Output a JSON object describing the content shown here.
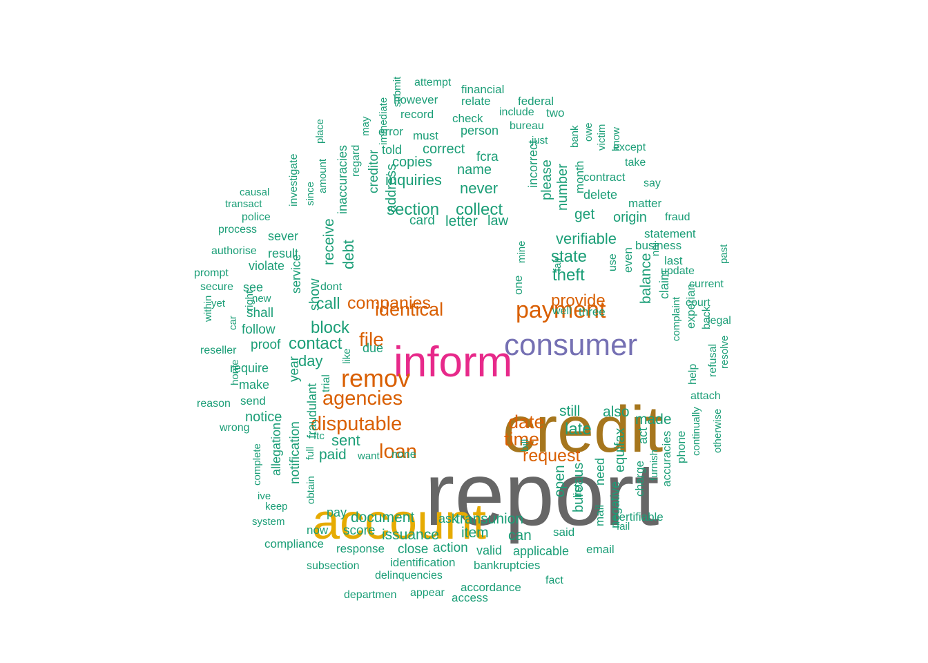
{
  "colors": {
    "c0": "#1b9e77",
    "c1": "#d95f02",
    "c2": "#7570b3",
    "c3": "#e7298a",
    "c4": "#66a61e",
    "c5": "#e6ab02",
    "c6": "#a6761d",
    "c7": "#666666"
  },
  "words": [
    {
      "t": "report",
      "c": "c7"
    },
    {
      "t": "credit",
      "c": "c6"
    },
    {
      "t": "account",
      "c": "c5"
    },
    {
      "t": "inform",
      "c": "c3"
    },
    {
      "t": "consumer",
      "c": "c2"
    },
    {
      "t": "payment",
      "c": "c1"
    },
    {
      "t": "remov",
      "c": "c1"
    },
    {
      "t": "agencies",
      "c": "c1"
    },
    {
      "t": "disputable",
      "c": "c1"
    },
    {
      "t": "file",
      "c": "c1"
    },
    {
      "t": "identical",
      "c": "c1"
    },
    {
      "t": "companies",
      "c": "c1"
    },
    {
      "t": "loan",
      "c": "c1"
    },
    {
      "t": "date",
      "c": "c1"
    },
    {
      "t": "time",
      "c": "c1"
    },
    {
      "t": "request",
      "c": "c1"
    },
    {
      "t": "provide",
      "c": "c1"
    },
    {
      "t": "section",
      "c": "c0"
    },
    {
      "t": "collect",
      "c": "c0"
    },
    {
      "t": "inquiries",
      "c": "c0"
    },
    {
      "t": "never",
      "c": "c0"
    },
    {
      "t": "name",
      "c": "c0"
    },
    {
      "t": "fcra",
      "c": "c0"
    },
    {
      "t": "correct",
      "c": "c0"
    },
    {
      "t": "copies",
      "c": "c0"
    },
    {
      "t": "told",
      "c": "c0"
    },
    {
      "t": "must",
      "c": "c0"
    },
    {
      "t": "person",
      "c": "c0"
    },
    {
      "t": "error",
      "c": "c0"
    },
    {
      "t": "record",
      "c": "c0"
    },
    {
      "t": "check",
      "c": "c0"
    },
    {
      "t": "however",
      "c": "c0"
    },
    {
      "t": "relate",
      "c": "c0"
    },
    {
      "t": "attempt",
      "c": "c0"
    },
    {
      "t": "financial",
      "c": "c0"
    },
    {
      "t": "federal",
      "c": "c0"
    },
    {
      "t": "include",
      "c": "c0"
    },
    {
      "t": "two",
      "c": "c0"
    },
    {
      "t": "bureau",
      "c": "c0"
    },
    {
      "t": "just",
      "c": "c0"
    },
    {
      "t": "card",
      "c": "c0"
    },
    {
      "t": "letter",
      "c": "c0"
    },
    {
      "t": "law",
      "c": "c0"
    },
    {
      "t": "verifiable",
      "c": "c0"
    },
    {
      "t": "state",
      "c": "c0"
    },
    {
      "t": "theft",
      "c": "c0"
    },
    {
      "t": "get",
      "c": "c0"
    },
    {
      "t": "origin",
      "c": "c0"
    },
    {
      "t": "delete",
      "c": "c0"
    },
    {
      "t": "contract",
      "c": "c0"
    },
    {
      "t": "except",
      "c": "c0"
    },
    {
      "t": "take",
      "c": "c0"
    },
    {
      "t": "say",
      "c": "c0"
    },
    {
      "t": "matter",
      "c": "c0"
    },
    {
      "t": "fraud",
      "c": "c0"
    },
    {
      "t": "statement",
      "c": "c0"
    },
    {
      "t": "business",
      "c": "c0"
    },
    {
      "t": "last",
      "c": "c0"
    },
    {
      "t": "update",
      "c": "c0"
    },
    {
      "t": "current",
      "c": "c0"
    },
    {
      "t": "court",
      "c": "c0"
    },
    {
      "t": "legal",
      "c": "c0"
    },
    {
      "t": "attach",
      "c": "c0"
    },
    {
      "t": "well",
      "c": "c0"
    },
    {
      "t": "three",
      "c": "c0"
    },
    {
      "t": "still",
      "c": "c0"
    },
    {
      "t": "also",
      "c": "c0"
    },
    {
      "t": "made",
      "c": "c0"
    },
    {
      "t": "late",
      "c": "c0"
    },
    {
      "t": "block",
      "c": "c0"
    },
    {
      "t": "contact",
      "c": "c0"
    },
    {
      "t": "day",
      "c": "c0"
    },
    {
      "t": "call",
      "c": "c0"
    },
    {
      "t": "due",
      "c": "c0"
    },
    {
      "t": "sent",
      "c": "c0"
    },
    {
      "t": "paid",
      "c": "c0"
    },
    {
      "t": "want",
      "c": "c0"
    },
    {
      "t": "none",
      "c": "c0"
    },
    {
      "t": "ftc",
      "c": "c0"
    },
    {
      "t": "dont",
      "c": "c0"
    },
    {
      "t": "document",
      "c": "c0"
    },
    {
      "t": "pay",
      "c": "c0"
    },
    {
      "t": "ask",
      "c": "c0"
    },
    {
      "t": "transunion",
      "c": "c0"
    },
    {
      "t": "score",
      "c": "c0"
    },
    {
      "t": "issuance",
      "c": "c0"
    },
    {
      "t": "item",
      "c": "c0"
    },
    {
      "t": "can",
      "c": "c0"
    },
    {
      "t": "said",
      "c": "c0"
    },
    {
      "t": "certifiable",
      "c": "c0"
    },
    {
      "t": "fail",
      "c": "c0"
    },
    {
      "t": "now",
      "c": "c0"
    },
    {
      "t": "response",
      "c": "c0"
    },
    {
      "t": "close",
      "c": "c0"
    },
    {
      "t": "action",
      "c": "c0"
    },
    {
      "t": "valid",
      "c": "c0"
    },
    {
      "t": "applicable",
      "c": "c0"
    },
    {
      "t": "email",
      "c": "c0"
    },
    {
      "t": "compliance",
      "c": "c0"
    },
    {
      "t": "identification",
      "c": "c0"
    },
    {
      "t": "bankruptcies",
      "c": "c0"
    },
    {
      "t": "subsection",
      "c": "c0"
    },
    {
      "t": "delinquencies",
      "c": "c0"
    },
    {
      "t": "fact",
      "c": "c0"
    },
    {
      "t": "accordance",
      "c": "c0"
    },
    {
      "t": "departmen",
      "c": "c0"
    },
    {
      "t": "appear",
      "c": "c0"
    },
    {
      "t": "access",
      "c": "c0"
    },
    {
      "t": "keep",
      "c": "c0"
    },
    {
      "t": "system",
      "c": "c0"
    },
    {
      "t": "ive",
      "c": "c0"
    },
    {
      "t": "notice",
      "c": "c0"
    },
    {
      "t": "send",
      "c": "c0"
    },
    {
      "t": "make",
      "c": "c0"
    },
    {
      "t": "require",
      "c": "c0"
    },
    {
      "t": "proof",
      "c": "c0"
    },
    {
      "t": "follow",
      "c": "c0"
    },
    {
      "t": "shall",
      "c": "c0"
    },
    {
      "t": "see",
      "c": "c0"
    },
    {
      "t": "secure",
      "c": "c0"
    },
    {
      "t": "prompt",
      "c": "c0"
    },
    {
      "t": "violate",
      "c": "c0"
    },
    {
      "t": "result",
      "c": "c0"
    },
    {
      "t": "authorise",
      "c": "c0"
    },
    {
      "t": "process",
      "c": "c0"
    },
    {
      "t": "sever",
      "c": "c0"
    },
    {
      "t": "police",
      "c": "c0"
    },
    {
      "t": "transact",
      "c": "c0"
    },
    {
      "t": "causal",
      "c": "c0"
    },
    {
      "t": "yet",
      "c": "c0"
    },
    {
      "t": "new",
      "c": "c0"
    },
    {
      "t": "reseller",
      "c": "c0"
    },
    {
      "t": "reason",
      "c": "c0"
    },
    {
      "t": "wrong",
      "c": "c0"
    },
    {
      "t": "submit",
      "c": "c0",
      "v": 1
    },
    {
      "t": "immediate",
      "c": "c0",
      "v": 1
    },
    {
      "t": "may",
      "c": "c0",
      "v": 1
    },
    {
      "t": "regard",
      "c": "c0",
      "v": 1
    },
    {
      "t": "creditor",
      "c": "c0",
      "v": 1
    },
    {
      "t": "address",
      "c": "c0",
      "v": 1
    },
    {
      "t": "inaccuracies",
      "c": "c0",
      "v": 1
    },
    {
      "t": "place",
      "c": "c0",
      "v": 1
    },
    {
      "t": "amount",
      "c": "c0",
      "v": 1
    },
    {
      "t": "since",
      "c": "c0",
      "v": 1
    },
    {
      "t": "investigate",
      "c": "c0",
      "v": 1
    },
    {
      "t": "receive",
      "c": "c0",
      "v": 1
    },
    {
      "t": "debt",
      "c": "c0",
      "v": 1
    },
    {
      "t": "show",
      "c": "c0",
      "v": 1
    },
    {
      "t": "service",
      "c": "c0",
      "v": 1
    },
    {
      "t": "right",
      "c": "c0",
      "v": 1
    },
    {
      "t": "within",
      "c": "c0",
      "v": 1
    },
    {
      "t": "car",
      "c": "c0",
      "v": 1
    },
    {
      "t": "home",
      "c": "c0",
      "v": 1
    },
    {
      "t": "year",
      "c": "c0",
      "v": 1
    },
    {
      "t": "fraudulant",
      "c": "c0",
      "v": 1
    },
    {
      "t": "trial",
      "c": "c0",
      "v": 1
    },
    {
      "t": "like",
      "c": "c0",
      "v": 1
    },
    {
      "t": "notification",
      "c": "c0",
      "v": 1
    },
    {
      "t": "allegation",
      "c": "c0",
      "v": 1
    },
    {
      "t": "complete",
      "c": "c0",
      "v": 1
    },
    {
      "t": "full",
      "c": "c0",
      "v": 1
    },
    {
      "t": "obtain",
      "c": "c0",
      "v": 1
    },
    {
      "t": "incorrect",
      "c": "c0",
      "v": 1
    },
    {
      "t": "please",
      "c": "c0",
      "v": 1
    },
    {
      "t": "number",
      "c": "c0",
      "v": 1
    },
    {
      "t": "month",
      "c": "c0",
      "v": 1
    },
    {
      "t": "bank",
      "c": "c0",
      "v": 1
    },
    {
      "t": "owe",
      "c": "c0",
      "v": 1
    },
    {
      "t": "victim",
      "c": "c0",
      "v": 1
    },
    {
      "t": "know",
      "c": "c0",
      "v": 1
    },
    {
      "t": "mine",
      "c": "c0",
      "v": 1
    },
    {
      "t": "one",
      "c": "c0",
      "v": 1
    },
    {
      "t": "fair",
      "c": "c0",
      "v": 1
    },
    {
      "t": "use",
      "c": "c0",
      "v": 1
    },
    {
      "t": "even",
      "c": "c0",
      "v": 1
    },
    {
      "t": "balance",
      "c": "c0",
      "v": 1
    },
    {
      "t": "claim",
      "c": "c0",
      "v": 1
    },
    {
      "t": "nni",
      "c": "c0",
      "v": 1
    },
    {
      "t": "past",
      "c": "c0",
      "v": 1
    },
    {
      "t": "complaint",
      "c": "c0",
      "v": 1
    },
    {
      "t": "experian",
      "c": "c0",
      "v": 1
    },
    {
      "t": "back",
      "c": "c0",
      "v": 1
    },
    {
      "t": "help",
      "c": "c0",
      "v": 1
    },
    {
      "t": "refusal",
      "c": "c0",
      "v": 1
    },
    {
      "t": "resolve",
      "c": "c0",
      "v": 1
    },
    {
      "t": "continually",
      "c": "c0",
      "v": 1
    },
    {
      "t": "otherwise",
      "c": "c0",
      "v": 1
    },
    {
      "t": "equifax",
      "c": "c0",
      "v": 1
    },
    {
      "t": "act",
      "c": "c0",
      "v": 1
    },
    {
      "t": "charge",
      "c": "c0",
      "v": 1
    },
    {
      "t": "accuracies",
      "c": "c0",
      "v": 1
    },
    {
      "t": "furnish",
      "c": "c0",
      "v": 1
    },
    {
      "t": "phone",
      "c": "c0",
      "v": 1
    },
    {
      "t": "negative",
      "c": "c0",
      "v": 1
    },
    {
      "t": "need",
      "c": "c0",
      "v": 1
    },
    {
      "t": "list",
      "c": "c0",
      "v": 1
    },
    {
      "t": "mail",
      "c": "c0",
      "v": 1
    },
    {
      "t": "bureaus",
      "c": "c0",
      "v": 1
    },
    {
      "t": "open",
      "c": "c0",
      "v": 1
    },
    {
      "t": "bill",
      "c": "c0",
      "v": 1
    }
  ]
}
